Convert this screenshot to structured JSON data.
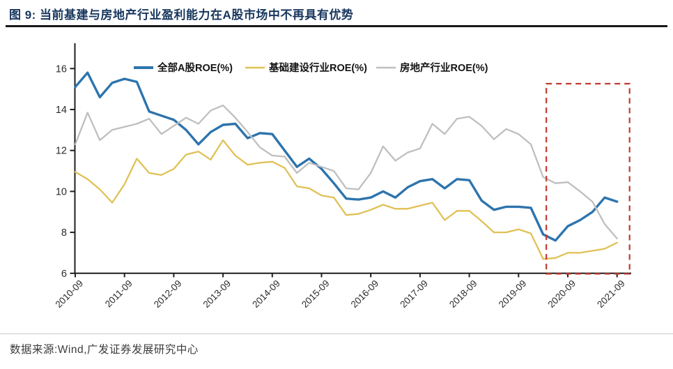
{
  "header": {
    "title": "图 9:  当前基建与房地产行业盈利能力在A股市场中不再具有优势"
  },
  "footer": {
    "source": "数据来源:Wind,广发证券发展研究中心"
  },
  "colors": {
    "all_a_share": "#2d74ad",
    "infrastructure": "#e0c155",
    "real_estate": "#bfbfbf",
    "highlight_box": "#c03a30",
    "axis": "#1f1f1f",
    "tick_text": "#2b2b2b",
    "title_navy": "#17365d"
  },
  "chart_data": {
    "type": "line",
    "title": "",
    "xlabel": "",
    "ylabel": "",
    "grid": false,
    "legend_position": "top",
    "y_axis": {
      "min": 6,
      "max": 16,
      "step": 2,
      "ticks": [
        6,
        8,
        10,
        12,
        14,
        16
      ]
    },
    "categories": [
      "2010-09",
      "2010-12",
      "2011-03",
      "2011-06",
      "2011-09",
      "2011-12",
      "2012-03",
      "2012-06",
      "2012-09",
      "2012-12",
      "2013-03",
      "2013-06",
      "2013-09",
      "2013-12",
      "2014-03",
      "2014-06",
      "2014-09",
      "2014-12",
      "2015-03",
      "2015-06",
      "2015-09",
      "2015-12",
      "2016-03",
      "2016-06",
      "2016-09",
      "2016-12",
      "2017-03",
      "2017-06",
      "2017-09",
      "2017-12",
      "2018-03",
      "2018-06",
      "2018-09",
      "2018-12",
      "2019-03",
      "2019-06",
      "2019-09",
      "2019-12",
      "2020-03",
      "2020-06",
      "2020-09",
      "2020-12",
      "2021-03",
      "2021-06",
      "2021-09"
    ],
    "x_tick_labels": [
      "2010-09",
      "2011-09",
      "2012-09",
      "2013-09",
      "2014-09",
      "2015-09",
      "2016-09",
      "2017-09",
      "2018-09",
      "2019-09",
      "2020-09",
      "2021-09"
    ],
    "series": [
      {
        "name": "全部A股ROE(%)",
        "color": "#2d74ad",
        "width": 3.4,
        "values": [
          15.1,
          15.8,
          14.6,
          15.3,
          15.5,
          15.35,
          13.9,
          13.7,
          13.5,
          13.0,
          12.3,
          12.9,
          13.25,
          13.3,
          12.6,
          12.85,
          12.8,
          12.0,
          11.2,
          11.6,
          11.1,
          10.4,
          9.65,
          9.6,
          9.7,
          10.0,
          9.7,
          10.2,
          10.5,
          10.6,
          10.15,
          10.6,
          10.55,
          9.55,
          9.1,
          9.25,
          9.25,
          9.2,
          7.9,
          7.6,
          8.3,
          8.6,
          9.0,
          9.7,
          9.5
        ]
      },
      {
        "name": "基础建设行业ROE(%)",
        "color": "#e0c155",
        "width": 2.3,
        "values": [
          10.95,
          10.6,
          10.1,
          9.45,
          10.35,
          11.6,
          10.9,
          10.8,
          11.1,
          11.8,
          11.95,
          11.55,
          12.5,
          11.75,
          11.3,
          11.4,
          11.45,
          11.15,
          10.25,
          10.15,
          9.8,
          9.7,
          8.85,
          8.9,
          9.1,
          9.35,
          9.15,
          9.15,
          9.3,
          9.45,
          8.6,
          9.05,
          9.05,
          8.55,
          8.0,
          8.0,
          8.15,
          7.95,
          6.7,
          6.75,
          7.0,
          7.0,
          7.1,
          7.2,
          7.5
        ]
      },
      {
        "name": "房地产行业ROE(%)",
        "color": "#bfbfbf",
        "width": 2.3,
        "values": [
          12.3,
          13.85,
          12.5,
          13.0,
          13.15,
          13.3,
          13.55,
          12.8,
          13.2,
          13.6,
          13.3,
          13.95,
          14.2,
          13.6,
          12.9,
          12.15,
          11.75,
          11.7,
          10.9,
          11.4,
          11.2,
          11.0,
          10.15,
          10.1,
          10.9,
          12.2,
          11.5,
          11.9,
          12.1,
          13.3,
          12.8,
          13.55,
          13.65,
          13.2,
          12.55,
          13.05,
          12.8,
          12.3,
          10.7,
          10.4,
          10.45,
          10.0,
          9.5,
          8.4,
          7.7
        ]
      }
    ],
    "highlight_region": {
      "from": "2020-03",
      "to": "2021-09",
      "style": "dashed",
      "color": "#c03a30"
    }
  }
}
